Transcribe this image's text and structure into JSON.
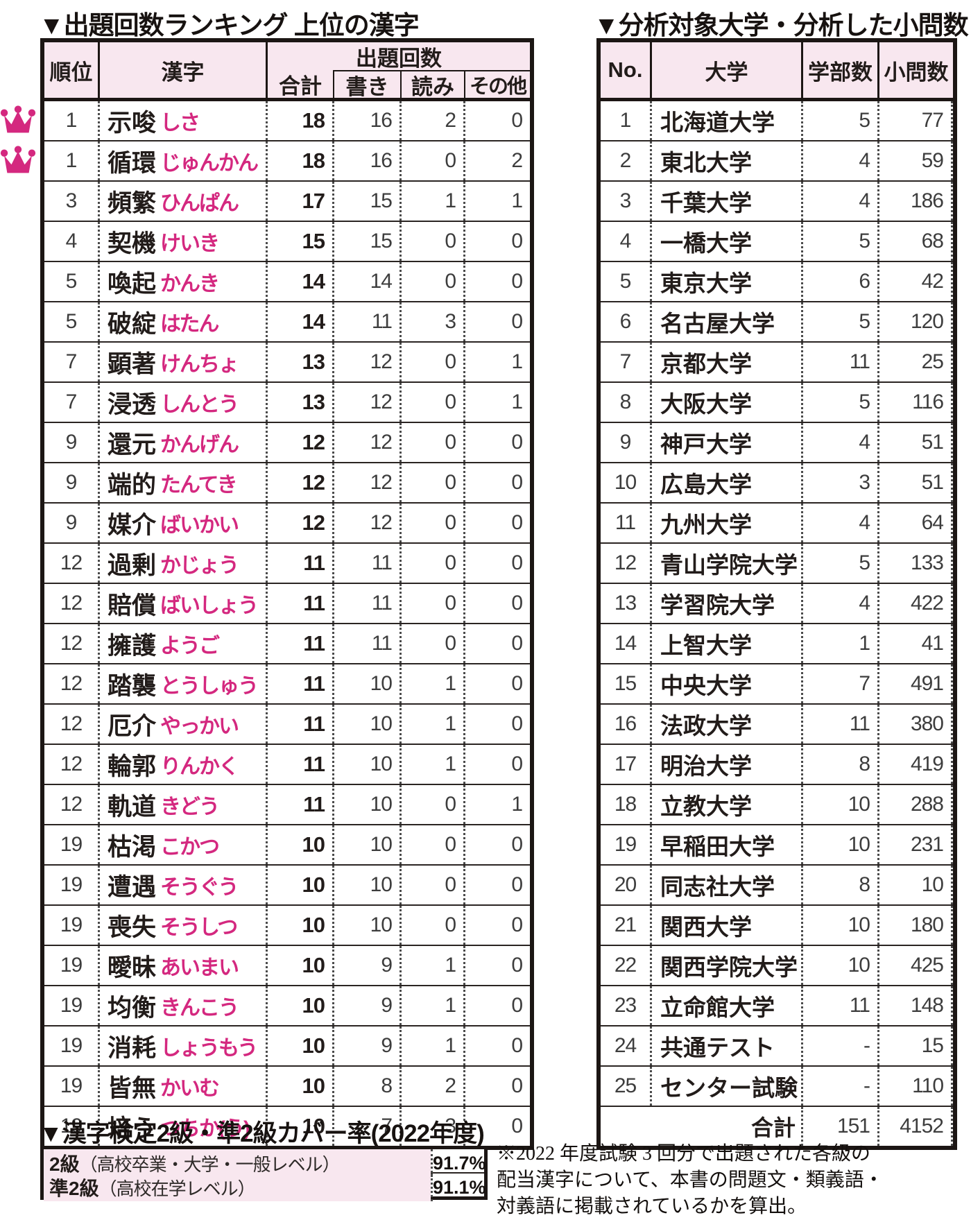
{
  "left_table": {
    "title": "▼出題回数ランキング 上位の漢字",
    "headers": {
      "rank": "順位",
      "kanji": "漢字",
      "count_group": "出題回数",
      "total": "合計",
      "write": "書き",
      "read": "読み",
      "other": "その他"
    },
    "rows": [
      {
        "rank": "1",
        "kanji": "示唆",
        "reading": "しさ",
        "total": "18",
        "write": "16",
        "read": "2",
        "other": "0",
        "crown": true
      },
      {
        "rank": "1",
        "kanji": "循環",
        "reading": "じゅんかん",
        "total": "18",
        "write": "16",
        "read": "0",
        "other": "2",
        "crown": true
      },
      {
        "rank": "3",
        "kanji": "頻繁",
        "reading": "ひんぱん",
        "total": "17",
        "write": "15",
        "read": "1",
        "other": "1",
        "crown": false
      },
      {
        "rank": "4",
        "kanji": "契機",
        "reading": "けいき",
        "total": "15",
        "write": "15",
        "read": "0",
        "other": "0",
        "crown": false
      },
      {
        "rank": "5",
        "kanji": "喚起",
        "reading": "かんき",
        "total": "14",
        "write": "14",
        "read": "0",
        "other": "0",
        "crown": false
      },
      {
        "rank": "5",
        "kanji": "破綻",
        "reading": "はたん",
        "total": "14",
        "write": "11",
        "read": "3",
        "other": "0",
        "crown": false
      },
      {
        "rank": "7",
        "kanji": "顕著",
        "reading": "けんちょ",
        "total": "13",
        "write": "12",
        "read": "0",
        "other": "1",
        "crown": false
      },
      {
        "rank": "7",
        "kanji": "浸透",
        "reading": "しんとう",
        "total": "13",
        "write": "12",
        "read": "0",
        "other": "1",
        "crown": false
      },
      {
        "rank": "9",
        "kanji": "還元",
        "reading": "かんげん",
        "total": "12",
        "write": "12",
        "read": "0",
        "other": "0",
        "crown": false
      },
      {
        "rank": "9",
        "kanji": "端的",
        "reading": "たんてき",
        "total": "12",
        "write": "12",
        "read": "0",
        "other": "0",
        "crown": false
      },
      {
        "rank": "9",
        "kanji": "媒介",
        "reading": "ばいかい",
        "total": "12",
        "write": "12",
        "read": "0",
        "other": "0",
        "crown": false
      },
      {
        "rank": "12",
        "kanji": "過剰",
        "reading": "かじょう",
        "total": "11",
        "write": "11",
        "read": "0",
        "other": "0",
        "crown": false
      },
      {
        "rank": "12",
        "kanji": "賠償",
        "reading": "ばいしょう",
        "total": "11",
        "write": "11",
        "read": "0",
        "other": "0",
        "crown": false
      },
      {
        "rank": "12",
        "kanji": "擁護",
        "reading": "ようご",
        "total": "11",
        "write": "11",
        "read": "0",
        "other": "0",
        "crown": false
      },
      {
        "rank": "12",
        "kanji": "踏襲",
        "reading": "とうしゅう",
        "total": "11",
        "write": "10",
        "read": "1",
        "other": "0",
        "crown": false
      },
      {
        "rank": "12",
        "kanji": "厄介",
        "reading": "やっかい",
        "total": "11",
        "write": "10",
        "read": "1",
        "other": "0",
        "crown": false
      },
      {
        "rank": "12",
        "kanji": "輪郭",
        "reading": "りんかく",
        "total": "11",
        "write": "10",
        "read": "1",
        "other": "0",
        "crown": false
      },
      {
        "rank": "12",
        "kanji": "軌道",
        "reading": "きどう",
        "total": "11",
        "write": "10",
        "read": "0",
        "other": "1",
        "crown": false
      },
      {
        "rank": "19",
        "kanji": "枯渇",
        "reading": "こかつ",
        "total": "10",
        "write": "10",
        "read": "0",
        "other": "0",
        "crown": false
      },
      {
        "rank": "19",
        "kanji": "遭遇",
        "reading": "そうぐう",
        "total": "10",
        "write": "10",
        "read": "0",
        "other": "0",
        "crown": false
      },
      {
        "rank": "19",
        "kanji": "喪失",
        "reading": "そうしつ",
        "total": "10",
        "write": "10",
        "read": "0",
        "other": "0",
        "crown": false
      },
      {
        "rank": "19",
        "kanji": "曖昧",
        "reading": "あいまい",
        "total": "10",
        "write": "9",
        "read": "1",
        "other": "0",
        "crown": false
      },
      {
        "rank": "19",
        "kanji": "均衡",
        "reading": "きんこう",
        "total": "10",
        "write": "9",
        "read": "1",
        "other": "0",
        "crown": false
      },
      {
        "rank": "19",
        "kanji": "消耗",
        "reading": "しょうもう",
        "total": "10",
        "write": "9",
        "read": "1",
        "other": "0",
        "crown": false
      },
      {
        "rank": "19",
        "kanji": "皆無",
        "reading": "かいむ",
        "total": "10",
        "write": "8",
        "read": "2",
        "other": "0",
        "crown": false
      },
      {
        "rank": "19",
        "kanji": "培う",
        "reading": "つちか(う)",
        "total": "10",
        "write": "7",
        "read": "3",
        "other": "0",
        "crown": false
      }
    ]
  },
  "right_table": {
    "title": "▼分析対象大学・分析した小問数",
    "headers": {
      "no": "No.",
      "university": "大学",
      "faculties": "学部数",
      "questions": "小問数"
    },
    "rows": [
      {
        "no": "1",
        "university": "北海道大学",
        "faculties": "5",
        "questions": "77"
      },
      {
        "no": "2",
        "university": "東北大学",
        "faculties": "4",
        "questions": "59"
      },
      {
        "no": "3",
        "university": "千葉大学",
        "faculties": "4",
        "questions": "186"
      },
      {
        "no": "4",
        "university": "一橋大学",
        "faculties": "5",
        "questions": "68"
      },
      {
        "no": "5",
        "university": "東京大学",
        "faculties": "6",
        "questions": "42"
      },
      {
        "no": "6",
        "university": "名古屋大学",
        "faculties": "5",
        "questions": "120"
      },
      {
        "no": "7",
        "university": "京都大学",
        "faculties": "11",
        "questions": "25"
      },
      {
        "no": "8",
        "university": "大阪大学",
        "faculties": "5",
        "questions": "116"
      },
      {
        "no": "9",
        "university": "神戸大学",
        "faculties": "4",
        "questions": "51"
      },
      {
        "no": "10",
        "university": "広島大学",
        "faculties": "3",
        "questions": "51"
      },
      {
        "no": "11",
        "university": "九州大学",
        "faculties": "4",
        "questions": "64"
      },
      {
        "no": "12",
        "university": "青山学院大学",
        "faculties": "5",
        "questions": "133"
      },
      {
        "no": "13",
        "university": "学習院大学",
        "faculties": "4",
        "questions": "422"
      },
      {
        "no": "14",
        "university": "上智大学",
        "faculties": "1",
        "questions": "41"
      },
      {
        "no": "15",
        "university": "中央大学",
        "faculties": "7",
        "questions": "491"
      },
      {
        "no": "16",
        "university": "法政大学",
        "faculties": "11",
        "questions": "380"
      },
      {
        "no": "17",
        "university": "明治大学",
        "faculties": "8",
        "questions": "419"
      },
      {
        "no": "18",
        "university": "立教大学",
        "faculties": "10",
        "questions": "288"
      },
      {
        "no": "19",
        "university": "早稲田大学",
        "faculties": "10",
        "questions": "231"
      },
      {
        "no": "20",
        "university": "同志社大学",
        "faculties": "8",
        "questions": "10"
      },
      {
        "no": "21",
        "university": "関西大学",
        "faculties": "10",
        "questions": "180"
      },
      {
        "no": "22",
        "university": "関西学院大学",
        "faculties": "10",
        "questions": "425"
      },
      {
        "no": "23",
        "university": "立命館大学",
        "faculties": "11",
        "questions": "148"
      },
      {
        "no": "24",
        "university": "共通テスト",
        "faculties": "-",
        "questions": "15"
      },
      {
        "no": "25",
        "university": "センター試験",
        "faculties": "-",
        "questions": "110"
      }
    ],
    "total_row": {
      "label": "合計",
      "faculties": "151",
      "questions": "4152"
    }
  },
  "coverage": {
    "title": "▼漢字検定2級・準2級カバー率(2022年度)",
    "rows": [
      {
        "grade": "2級",
        "desc": "（高校卒業・大学・一般レベル）",
        "value": "91.7%"
      },
      {
        "grade": "準2級",
        "desc": "（高校在学レベル）",
        "value": "91.1%"
      }
    ]
  },
  "note": {
    "lines": [
      "※2022 年度試験 3 回分で出題された各級の",
      "配当漢字について、本書の問題文・類義語・",
      "対義語に掲載されているかを算出。"
    ]
  },
  "colors": {
    "accent_pink": "#d4287f",
    "header_bg": "#f8e7ef",
    "ink": "#221c1a"
  }
}
